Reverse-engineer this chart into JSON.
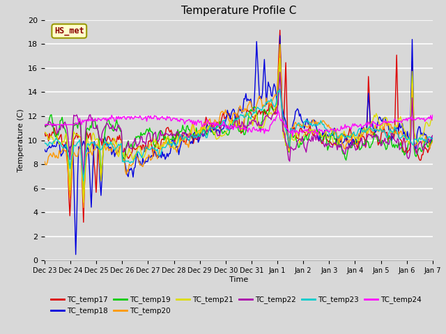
{
  "title": "Temperature Profile C",
  "xlabel": "Time",
  "ylabel": "Temperature (C)",
  "ylim": [
    0,
    20
  ],
  "fig_bg": "#d8d8d8",
  "plot_bg": "#d8d8d8",
  "annotation_label": "HS_met",
  "annotation_color": "#8B0000",
  "annotation_bg": "#ffffcc",
  "annotation_edge": "#999900",
  "series_colors": {
    "TC_temp17": "#dd0000",
    "TC_temp18": "#0000dd",
    "TC_temp19": "#00cc00",
    "TC_temp20": "#ff9900",
    "TC_temp21": "#dddd00",
    "TC_temp22": "#aa00aa",
    "TC_temp23": "#00cccc",
    "TC_temp24": "#ff00ff"
  },
  "legend_names": [
    "TC_temp17",
    "TC_temp18",
    "TC_temp19",
    "TC_temp20",
    "TC_temp21",
    "TC_temp22",
    "TC_temp23",
    "TC_temp24"
  ],
  "xtick_labels": [
    "Dec 23",
    "Dec 24",
    "Dec 25",
    "Dec 26",
    "Dec 27",
    "Dec 28",
    "Dec 29",
    "Dec 30",
    "Dec 31",
    "Jan 1",
    "Jan 2",
    "Jan 3",
    "Jan 4",
    "Jan 5",
    "Jan 6",
    "Jan 7"
  ],
  "ytick_labels": [
    0,
    2,
    4,
    6,
    8,
    10,
    12,
    14,
    16,
    18,
    20
  ],
  "n_points": 400,
  "seed": 7
}
